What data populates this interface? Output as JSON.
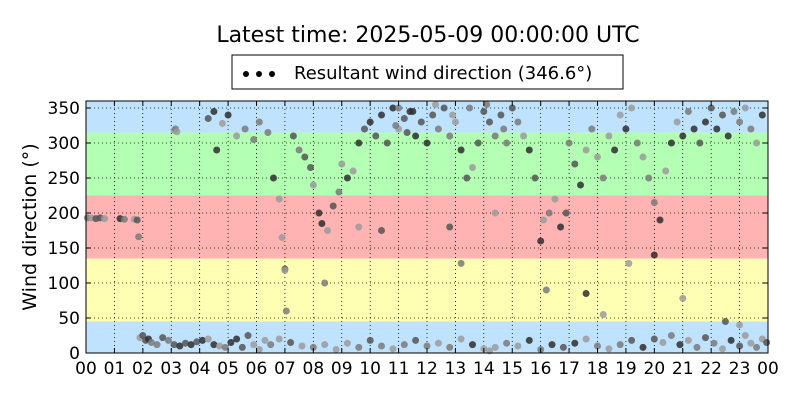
{
  "chart_data": {
    "type": "scatter",
    "title": "Latest time: 2025-05-09 00:00:00 UTC",
    "xlabel": "",
    "ylabel": "Wind direction (°)",
    "xlim": [
      0,
      24
    ],
    "ylim": [
      0,
      360
    ],
    "x_ticks": [
      "00",
      "01",
      "02",
      "03",
      "04",
      "05",
      "06",
      "07",
      "08",
      "09",
      "10",
      "11",
      "12",
      "13",
      "14",
      "15",
      "16",
      "17",
      "18",
      "19",
      "20",
      "21",
      "22",
      "23",
      "00"
    ],
    "y_ticks": [
      0,
      50,
      100,
      150,
      200,
      250,
      300,
      350
    ],
    "grid": true,
    "legend": {
      "placement": "top-center",
      "label": "Resultant wind direction (346.6°)"
    },
    "bands": [
      {
        "from": 0,
        "to": 45,
        "color": "#bfe3ff"
      },
      {
        "from": 45,
        "to": 135,
        "color": "#ffffb3"
      },
      {
        "from": 135,
        "to": 225,
        "color": "#ffb3b3"
      },
      {
        "from": 225,
        "to": 315,
        "color": "#b3ffb3"
      },
      {
        "from": 315,
        "to": 360,
        "color": "#bfe3ff"
      }
    ],
    "point_colors": [
      "#9b9b9b",
      "#7a7a7a",
      "#555555",
      "#2e2e2e"
    ],
    "series": [
      {
        "values": [
          [
            0.05,
            193
          ],
          [
            0.2,
            193
          ],
          [
            0.35,
            192
          ],
          [
            0.5,
            193
          ],
          [
            0.65,
            192
          ],
          [
            1.2,
            192
          ],
          [
            1.35,
            191
          ],
          [
            1.7,
            191
          ],
          [
            1.8,
            190
          ],
          [
            1.85,
            166
          ],
          [
            1.9,
            22
          ],
          [
            2.0,
            25
          ],
          [
            2.1,
            18
          ],
          [
            2.2,
            20
          ],
          [
            2.3,
            15
          ],
          [
            2.5,
            12
          ],
          [
            2.7,
            22
          ],
          [
            2.9,
            18
          ],
          [
            3.1,
            12
          ],
          [
            3.3,
            10
          ],
          [
            3.5,
            14
          ],
          [
            3.7,
            12
          ],
          [
            3.9,
            16
          ],
          [
            4.1,
            18
          ],
          [
            4.3,
            20
          ],
          [
            4.5,
            12
          ],
          [
            4.7,
            10
          ],
          [
            4.9,
            8
          ],
          [
            5.1,
            15
          ],
          [
            5.3,
            20
          ],
          [
            5.5,
            8
          ],
          [
            5.7,
            25
          ],
          [
            5.9,
            12
          ],
          [
            6.1,
            5
          ],
          [
            6.3,
            18
          ],
          [
            6.5,
            12
          ],
          [
            6.8,
            20
          ],
          [
            7.2,
            15
          ],
          [
            7.6,
            10
          ],
          [
            8.0,
            8
          ],
          [
            8.4,
            12
          ],
          [
            8.8,
            5
          ],
          [
            9.2,
            14
          ],
          [
            9.6,
            8
          ],
          [
            10.0,
            18
          ],
          [
            10.4,
            10
          ],
          [
            10.8,
            6
          ],
          [
            11.2,
            12
          ],
          [
            11.6,
            18
          ],
          [
            12.0,
            10
          ],
          [
            12.4,
            14
          ],
          [
            12.8,
            8
          ],
          [
            13.2,
            20
          ],
          [
            13.6,
            12
          ],
          [
            14.0,
            6
          ],
          [
            14.2,
            3
          ],
          [
            14.4,
            8
          ],
          [
            14.8,
            14
          ],
          [
            15.2,
            10
          ],
          [
            15.6,
            18
          ],
          [
            16.0,
            5
          ],
          [
            16.4,
            12
          ],
          [
            16.8,
            8
          ],
          [
            17.2,
            14
          ],
          [
            17.6,
            20
          ],
          [
            18.0,
            10
          ],
          [
            18.4,
            6
          ],
          [
            18.8,
            12
          ],
          [
            19.2,
            18
          ],
          [
            19.6,
            8
          ],
          [
            20.0,
            20
          ],
          [
            20.3,
            15
          ],
          [
            20.6,
            25
          ],
          [
            20.9,
            12
          ],
          [
            21.2,
            18
          ],
          [
            21.5,
            8
          ],
          [
            21.8,
            22
          ],
          [
            22.1,
            14
          ],
          [
            22.4,
            6
          ],
          [
            22.7,
            18
          ],
          [
            23.0,
            10
          ],
          [
            23.2,
            25
          ],
          [
            23.4,
            14
          ],
          [
            23.6,
            8
          ],
          [
            23.8,
            20
          ],
          [
            23.95,
            15
          ],
          [
            3.1,
            318
          ],
          [
            3.15,
            320
          ],
          [
            3.2,
            316
          ],
          [
            4.3,
            335
          ],
          [
            4.5,
            345
          ],
          [
            4.6,
            290
          ],
          [
            4.8,
            328
          ],
          [
            5.0,
            340
          ],
          [
            5.3,
            310
          ],
          [
            5.6,
            320
          ],
          [
            5.9,
            305
          ],
          [
            6.1,
            330
          ],
          [
            6.4,
            315
          ],
          [
            6.6,
            250
          ],
          [
            6.8,
            220
          ],
          [
            6.9,
            165
          ],
          [
            7.0,
            120
          ],
          [
            7.05,
            60
          ],
          [
            7.3,
            310
          ],
          [
            7.5,
            290
          ],
          [
            7.7,
            280
          ],
          [
            7.9,
            265
          ],
          [
            8.0,
            240
          ],
          [
            8.2,
            200
          ],
          [
            8.3,
            185
          ],
          [
            8.5,
            175
          ],
          [
            8.7,
            210
          ],
          [
            8.9,
            230
          ],
          [
            9.0,
            270
          ],
          [
            9.2,
            250
          ],
          [
            9.4,
            260
          ],
          [
            9.6,
            300
          ],
          [
            9.8,
            320
          ],
          [
            10.0,
            330
          ],
          [
            10.2,
            310
          ],
          [
            10.4,
            340
          ],
          [
            10.6,
            300
          ],
          [
            10.8,
            350
          ],
          [
            11.0,
            320
          ],
          [
            11.2,
            335
          ],
          [
            11.4,
            345
          ],
          [
            11.6,
            310
          ],
          [
            11.8,
            330
          ],
          [
            12.0,
            300
          ],
          [
            12.2,
            340
          ],
          [
            12.4,
            320
          ],
          [
            12.6,
            350
          ],
          [
            12.8,
            310
          ],
          [
            13.0,
            330
          ],
          [
            13.2,
            290
          ],
          [
            13.4,
            250
          ],
          [
            13.6,
            265
          ],
          [
            13.8,
            300
          ],
          [
            14.0,
            345
          ],
          [
            14.2,
            330
          ],
          [
            14.4,
            310
          ],
          [
            14.6,
            340
          ],
          [
            14.8,
            300
          ],
          [
            15.0,
            350
          ],
          [
            15.2,
            330
          ],
          [
            15.4,
            310
          ],
          [
            15.6,
            290
          ],
          [
            15.8,
            250
          ],
          [
            16.0,
            160
          ],
          [
            16.1,
            190
          ],
          [
            16.3,
            200
          ],
          [
            16.5,
            220
          ],
          [
            16.7,
            180
          ],
          [
            16.9,
            200
          ],
          [
            17.0,
            300
          ],
          [
            17.2,
            270
          ],
          [
            17.4,
            240
          ],
          [
            17.6,
            290
          ],
          [
            17.8,
            320
          ],
          [
            18.0,
            280
          ],
          [
            18.2,
            250
          ],
          [
            18.4,
            310
          ],
          [
            18.6,
            290
          ],
          [
            18.8,
            340
          ],
          [
            19.0,
            320
          ],
          [
            19.2,
            350
          ],
          [
            19.4,
            300
          ],
          [
            19.6,
            280
          ],
          [
            19.8,
            250
          ],
          [
            20.0,
            215
          ],
          [
            20.2,
            190
          ],
          [
            20.4,
            260
          ],
          [
            20.6,
            300
          ],
          [
            20.8,
            330
          ],
          [
            21.0,
            310
          ],
          [
            21.2,
            345
          ],
          [
            21.4,
            320
          ],
          [
            21.6,
            300
          ],
          [
            21.8,
            330
          ],
          [
            22.0,
            350
          ],
          [
            22.2,
            320
          ],
          [
            22.4,
            340
          ],
          [
            22.6,
            310
          ],
          [
            22.8,
            345
          ],
          [
            23.0,
            330
          ],
          [
            23.2,
            350
          ],
          [
            23.4,
            320
          ],
          [
            23.6,
            300
          ],
          [
            23.8,
            340
          ],
          [
            7.0,
            118
          ],
          [
            8.4,
            100
          ],
          [
            9.6,
            180
          ],
          [
            10.4,
            175
          ],
          [
            12.8,
            180
          ],
          [
            13.2,
            128
          ],
          [
            14.4,
            200
          ],
          [
            16.2,
            90
          ],
          [
            17.6,
            85
          ],
          [
            18.2,
            55
          ],
          [
            19.1,
            128
          ],
          [
            20.0,
            140
          ],
          [
            21.0,
            78
          ],
          [
            22.5,
            45
          ],
          [
            23.0,
            40
          ],
          [
            11.0,
            350
          ],
          [
            11.5,
            345
          ],
          [
            12.3,
            355
          ],
          [
            12.9,
            340
          ],
          [
            13.5,
            350
          ],
          [
            14.1,
            355
          ],
          [
            14.7,
            320
          ],
          [
            10.9,
            325
          ],
          [
            11.3,
            315
          ]
        ]
      }
    ]
  }
}
